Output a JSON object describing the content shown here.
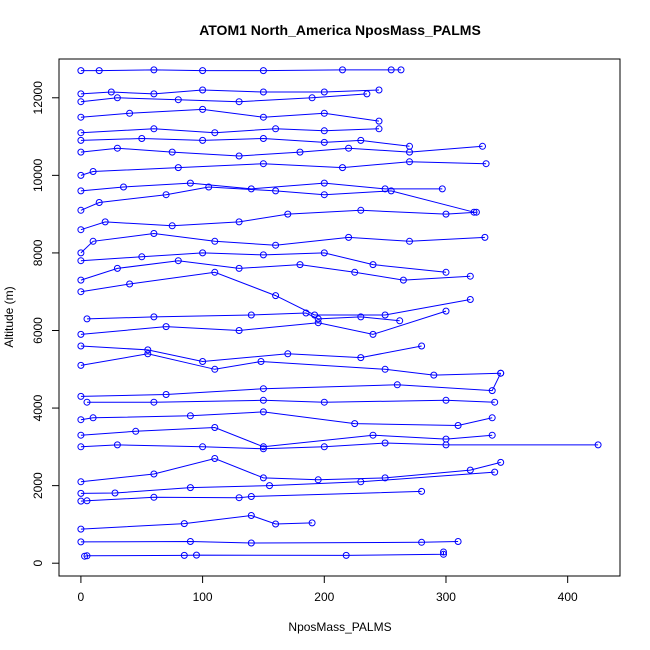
{
  "chart_data": {
    "type": "line",
    "title": "ATOM1 North_America NposMass_PALMS",
    "xlabel": "NposMass_PALMS",
    "ylabel": "Altitude (m)",
    "xlim": [
      -18,
      443
    ],
    "ylim": [
      -330,
      13000
    ],
    "x_ticks": [
      0,
      100,
      200,
      300,
      400
    ],
    "y_ticks": [
      0,
      2000,
      4000,
      6000,
      8000,
      10000,
      12000
    ],
    "marker": "open-circle",
    "grid": false,
    "legend": "none",
    "color": "#0000ff",
    "series": [
      {
        "x": [
          3,
          5,
          85,
          95,
          218,
          298,
          298
        ],
        "y": [
          180,
          190,
          200,
          210,
          200,
          230,
          290
        ]
      },
      {
        "x": [
          0,
          90,
          140,
          280,
          310
        ],
        "y": [
          550,
          560,
          520,
          540,
          560
        ]
      },
      {
        "x": [
          0,
          85,
          140,
          160,
          190
        ],
        "y": [
          880,
          1020,
          1230,
          1010,
          1040
        ]
      },
      {
        "x": [
          0,
          5,
          60,
          130,
          140,
          280
        ],
        "y": [
          1600,
          1610,
          1700,
          1690,
          1720,
          1850
        ]
      },
      {
        "x": [
          0,
          28,
          90,
          155,
          230,
          340
        ],
        "y": [
          1800,
          1810,
          1950,
          2000,
          2100,
          2350
        ]
      },
      {
        "x": [
          0,
          60,
          110,
          150,
          195,
          250,
          320,
          345
        ],
        "y": [
          2100,
          2300,
          2700,
          2200,
          2150,
          2200,
          2400,
          2600
        ]
      },
      {
        "x": [
          0,
          30,
          100,
          150,
          200,
          250,
          300,
          425
        ],
        "y": [
          3000,
          3050,
          3000,
          2950,
          3000,
          3100,
          3050,
          3050
        ]
      },
      {
        "x": [
          0,
          45,
          110,
          150,
          240,
          300,
          338
        ],
        "y": [
          3300,
          3400,
          3500,
          3000,
          3300,
          3200,
          3300
        ]
      },
      {
        "x": [
          0,
          10,
          90,
          150,
          225,
          310,
          338
        ],
        "y": [
          3700,
          3750,
          3800,
          3900,
          3600,
          3550,
          3750
        ]
      },
      {
        "x": [
          5,
          60,
          150,
          200,
          300,
          340
        ],
        "y": [
          4150,
          4150,
          4200,
          4150,
          4200,
          4150
        ]
      },
      {
        "x": [
          0,
          70,
          150,
          260,
          338,
          345
        ],
        "y": [
          4300,
          4350,
          4500,
          4600,
          4450,
          4900
        ]
      },
      {
        "x": [
          0,
          55,
          110,
          148,
          250,
          290,
          345
        ],
        "y": [
          5100,
          5400,
          5000,
          5200,
          5000,
          4850,
          4900
        ]
      },
      {
        "x": [
          0,
          55,
          100,
          170,
          230,
          280
        ],
        "y": [
          5600,
          5500,
          5200,
          5400,
          5300,
          5600
        ]
      },
      {
        "x": [
          0,
          70,
          130,
          195,
          240,
          300
        ],
        "y": [
          5900,
          6100,
          6000,
          6200,
          5900,
          6500
        ]
      },
      {
        "x": [
          5,
          60,
          140,
          185,
          195,
          230,
          262
        ],
        "y": [
          6300,
          6350,
          6400,
          6450,
          6300,
          6350,
          6250
        ]
      },
      {
        "x": [
          0,
          40,
          110,
          160,
          192,
          250,
          320
        ],
        "y": [
          7000,
          7200,
          7500,
          6900,
          6400,
          6400,
          6800
        ]
      },
      {
        "x": [
          0,
          30,
          80,
          130,
          180,
          225,
          265,
          320
        ],
        "y": [
          7300,
          7600,
          7800,
          7600,
          7700,
          7500,
          7300,
          7400
        ]
      },
      {
        "x": [
          0,
          50,
          100,
          150,
          200,
          240,
          300
        ],
        "y": [
          7800,
          7900,
          8000,
          7950,
          8000,
          7700,
          7500
        ]
      },
      {
        "x": [
          0,
          10,
          60,
          110,
          160,
          220,
          270,
          332
        ],
        "y": [
          8000,
          8300,
          8500,
          8300,
          8200,
          8400,
          8300,
          8400
        ]
      },
      {
        "x": [
          0,
          20,
          75,
          130,
          170,
          230,
          300,
          325
        ],
        "y": [
          8600,
          8800,
          8700,
          8800,
          9000,
          9100,
          9000,
          9050
        ]
      },
      {
        "x": [
          0,
          15,
          70,
          105,
          160,
          200,
          255,
          323
        ],
        "y": [
          9100,
          9300,
          9500,
          9700,
          9600,
          9500,
          9600,
          9050
        ]
      },
      {
        "x": [
          0,
          35,
          90,
          140,
          200,
          250,
          297
        ],
        "y": [
          9600,
          9700,
          9800,
          9650,
          9800,
          9650,
          9650
        ]
      },
      {
        "x": [
          0,
          10,
          80,
          150,
          215,
          270,
          333
        ],
        "y": [
          10000,
          10100,
          10200,
          10300,
          10200,
          10350,
          10300
        ]
      },
      {
        "x": [
          0,
          30,
          75,
          130,
          180,
          220,
          270,
          330
        ],
        "y": [
          10600,
          10700,
          10600,
          10500,
          10600,
          10700,
          10600,
          10750
        ]
      },
      {
        "x": [
          0,
          50,
          100,
          150,
          200,
          230,
          270
        ],
        "y": [
          10900,
          10950,
          10900,
          10950,
          10850,
          10900,
          10750
        ]
      },
      {
        "x": [
          0,
          60,
          110,
          160,
          200,
          245
        ],
        "y": [
          11100,
          11200,
          11100,
          11200,
          11150,
          11200
        ]
      },
      {
        "x": [
          0,
          40,
          100,
          150,
          200,
          245
        ],
        "y": [
          11500,
          11600,
          11700,
          11500,
          11600,
          11400
        ]
      },
      {
        "x": [
          0,
          30,
          80,
          130,
          190,
          235
        ],
        "y": [
          11900,
          12000,
          11950,
          11900,
          12000,
          12100
        ]
      },
      {
        "x": [
          0,
          25,
          60,
          100,
          150,
          200,
          245
        ],
        "y": [
          12100,
          12150,
          12100,
          12200,
          12150,
          12150,
          12200
        ]
      },
      {
        "x": [
          0,
          15,
          60,
          100,
          150,
          215,
          255,
          263
        ],
        "y": [
          12700,
          12700,
          12720,
          12700,
          12700,
          12720,
          12720,
          12720
        ]
      }
    ]
  }
}
